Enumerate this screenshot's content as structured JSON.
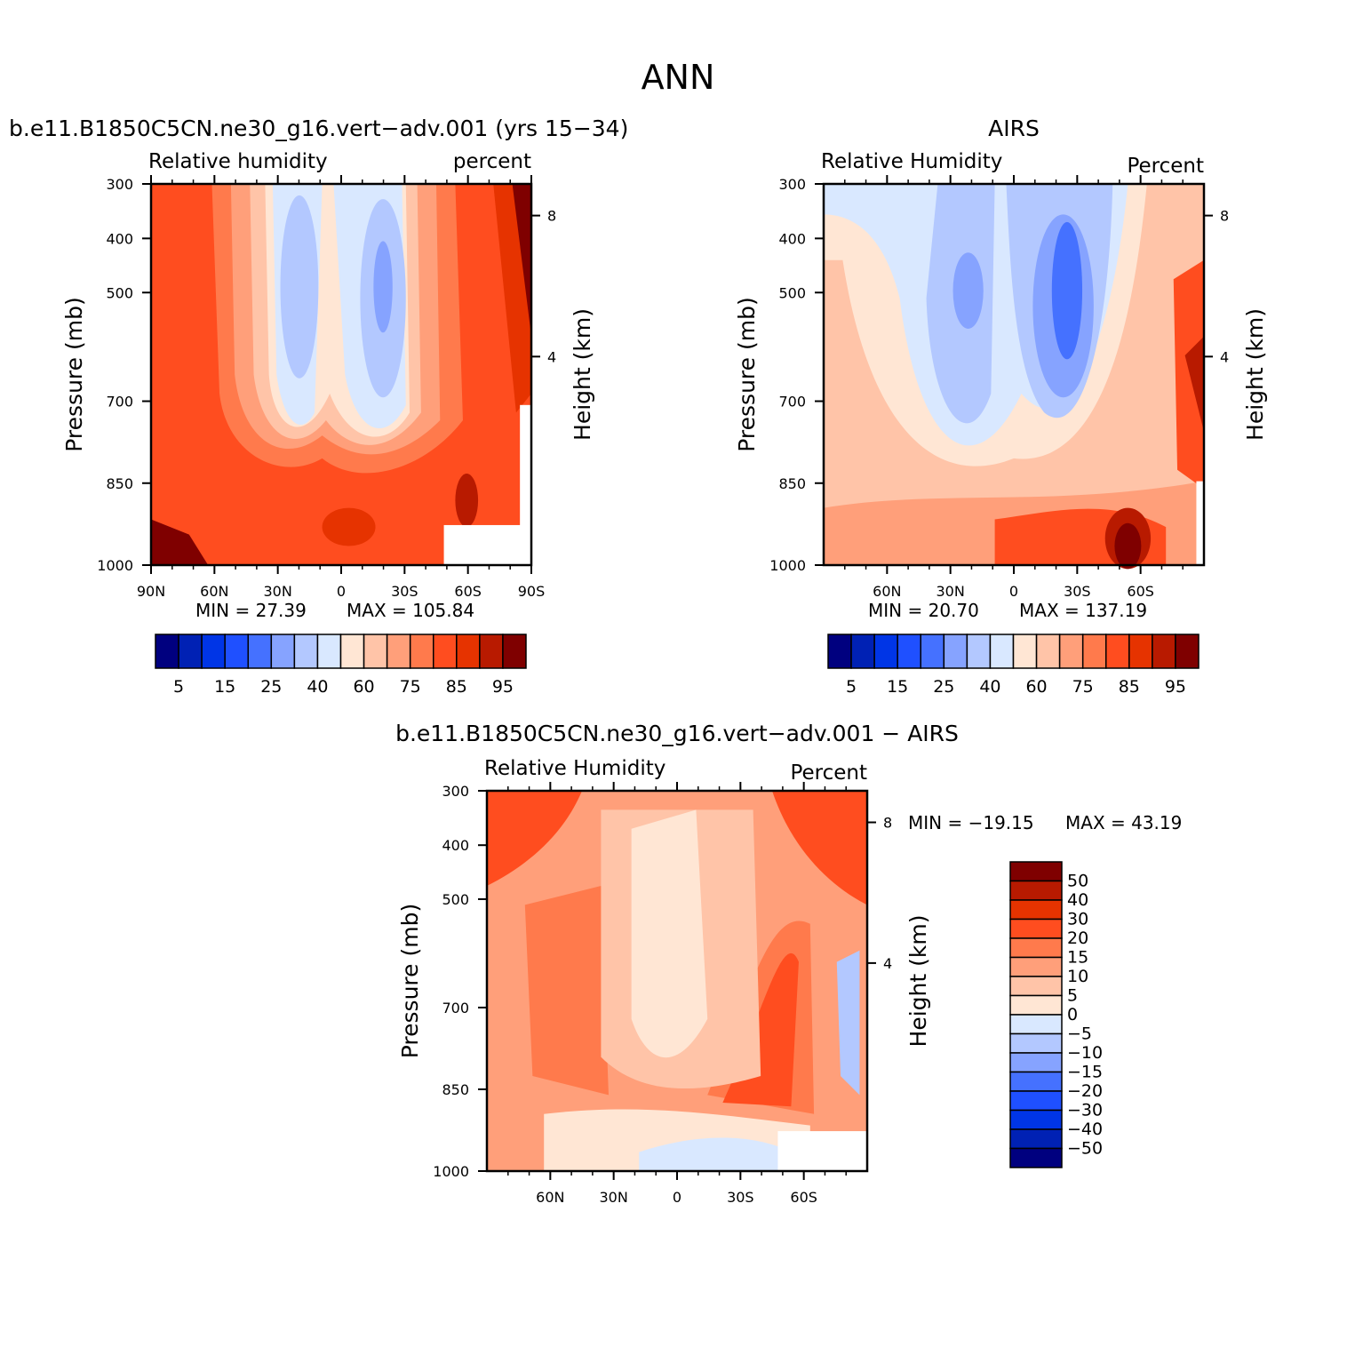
{
  "page": {
    "title": "ANN"
  },
  "colors": {
    "rh_levels": [
      "#00007f",
      "#0021b4",
      "#0035e6",
      "#1f50ff",
      "#4571ff",
      "#86a3ff",
      "#b3c8ff",
      "#d9e8ff",
      "#ffe6d4",
      "#ffc4a8",
      "#ff9f7a",
      "#ff7a4c",
      "#ff4d1f",
      "#e63300",
      "#b81a00",
      "#7f0000"
    ],
    "diff_levels": [
      "#7f0000",
      "#b81a00",
      "#e63300",
      "#ff4d1f",
      "#ff7a4c",
      "#ff9f7a",
      "#ffc4a8",
      "#ffe6d4",
      "#d9e8ff",
      "#b3c8ff",
      "#86a3ff",
      "#4571ff",
      "#1f50ff",
      "#0035e6",
      "#0021b4",
      "#00007f"
    ]
  },
  "chart_data": [
    {
      "type": "heatmap",
      "title": "b.e11.B1850C5CN.ne30_g16.vert−adv.001 (yrs 15−34)",
      "left_label": "Relative humidity",
      "right_label": "percent",
      "ylabel": "Pressure (mb)",
      "y2label": "Height (km)",
      "y_ticks": [
        "300",
        "400",
        "500",
        "700",
        "850",
        "1000"
      ],
      "y2_ticks": [
        "8",
        "4"
      ],
      "x_ticks": [
        "90N",
        "60N",
        "30N",
        "0",
        "30S",
        "60S",
        "90S"
      ],
      "min_text": "MIN =   27.39",
      "max_text": "MAX  =  105.84",
      "min": 27.39,
      "max": 105.84,
      "colorbar_labels": [
        "5",
        "15",
        "25",
        "40",
        "60",
        "75",
        "85",
        "95"
      ],
      "contour_levels": [
        5,
        10,
        15,
        20,
        25,
        30,
        40,
        50,
        60,
        65,
        70,
        75,
        80,
        85,
        90,
        95
      ]
    },
    {
      "type": "heatmap",
      "title": "AIRS",
      "left_label": "Relative Humidity",
      "right_label": "Percent",
      "ylabel": "Pressure (mb)",
      "y2label": "Height (km)",
      "y_ticks": [
        "300",
        "400",
        "500",
        "700",
        "850",
        "1000"
      ],
      "y2_ticks": [
        "8",
        "4"
      ],
      "x_ticks": [
        "60N",
        "30N",
        "0",
        "30S",
        "60S"
      ],
      "min_text": "MIN =   20.70",
      "max_text": "MAX  =  137.19",
      "min": 20.7,
      "max": 137.19,
      "colorbar_labels": [
        "5",
        "15",
        "25",
        "40",
        "60",
        "75",
        "85",
        "95"
      ],
      "contour_levels": [
        5,
        10,
        15,
        20,
        25,
        30,
        40,
        50,
        60,
        65,
        70,
        75,
        80,
        85,
        90,
        95
      ]
    },
    {
      "type": "heatmap",
      "title": "b.e11.B1850C5CN.ne30_g16.vert−adv.001 − AIRS",
      "left_label": "Relative Humidity",
      "right_label": "Percent",
      "ylabel": "Pressure (mb)",
      "y2label": "Height (km)",
      "y_ticks": [
        "300",
        "400",
        "500",
        "700",
        "850",
        "1000"
      ],
      "y2_ticks": [
        "8",
        "4"
      ],
      "x_ticks": [
        "60N",
        "30N",
        "0",
        "30S",
        "60S"
      ],
      "min_text": "MIN = −19.15",
      "max_text": "MAX =   43.19",
      "min": -19.15,
      "max": 43.19,
      "colorbar_labels": [
        "50",
        "40",
        "30",
        "20",
        "15",
        "10",
        "5",
        "0",
        "−5",
        "−10",
        "−15",
        "−20",
        "−30",
        "−40",
        "−50"
      ],
      "contour_levels": [
        50,
        40,
        30,
        20,
        15,
        10,
        5,
        0,
        -5,
        -10,
        -15,
        -20,
        -30,
        -40,
        -50
      ]
    }
  ]
}
